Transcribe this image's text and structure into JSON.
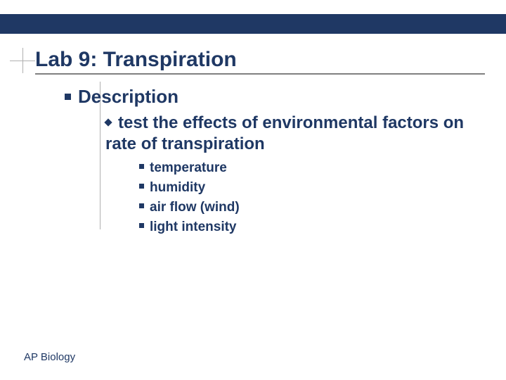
{
  "title": "Lab 9: Transpiration",
  "level1": "Description",
  "level2": "test the effects of environmental factors on rate of transpiration",
  "level3": {
    "items": [
      "temperature",
      "humidity",
      "air flow (wind)",
      "light intensity"
    ]
  },
  "footer": "AP Biology",
  "colors": {
    "accent": "#1f3864",
    "rule": "#808080",
    "guide": "#b0b0b0",
    "background": "#ffffff"
  },
  "fonts": {
    "title_size": 30,
    "lvl1_size": 26,
    "lvl2_size": 24,
    "lvl3_size": 19,
    "footer_size": 15
  }
}
